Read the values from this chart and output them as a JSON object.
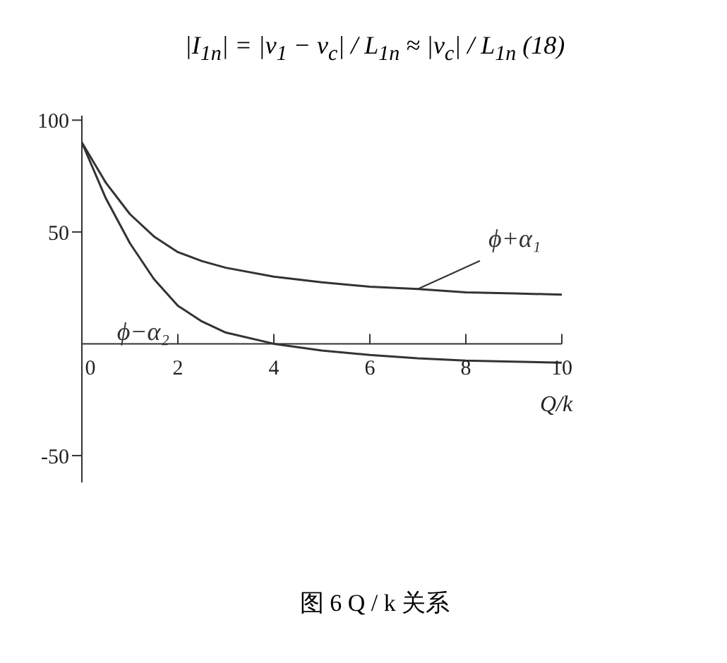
{
  "chart_data": {
    "type": "line",
    "title": "图 6    Q / k 关系",
    "xlabel": "Q/k",
    "annotations": [
      "|I$_{1n}$| = |v$_{1}$ − v$_{c}$| / L$_{1n}$ ≈ |v$_{c}$| / L$_{1n}$      (18)"
    ],
    "x": [
      0,
      0.5,
      1,
      1.5,
      2,
      2.5,
      3,
      4,
      5,
      6,
      7,
      8,
      9,
      10
    ],
    "series": [
      {
        "name": "ϕ−α₂",
        "color": "#333333",
        "values": [
          90,
          65,
          45,
          29,
          17,
          10,
          5,
          0,
          -3,
          -5,
          -6.5,
          -7.5,
          -8,
          -8.5
        ]
      },
      {
        "name": "ϕ+α₁",
        "color": "#333333",
        "values": [
          90,
          72,
          58,
          48,
          41,
          37,
          34,
          30,
          27.5,
          25.5,
          24.5,
          23,
          22.5,
          22
        ]
      }
    ],
    "xlim": [
      0,
      10
    ],
    "xticks": [
      0,
      2,
      4,
      6,
      8,
      10
    ],
    "ylim": [
      -62,
      102
    ],
    "yticks": [
      -50,
      50,
      100
    ],
    "grid": false,
    "legend": false,
    "marker": "none",
    "line_style": "solid"
  }
}
